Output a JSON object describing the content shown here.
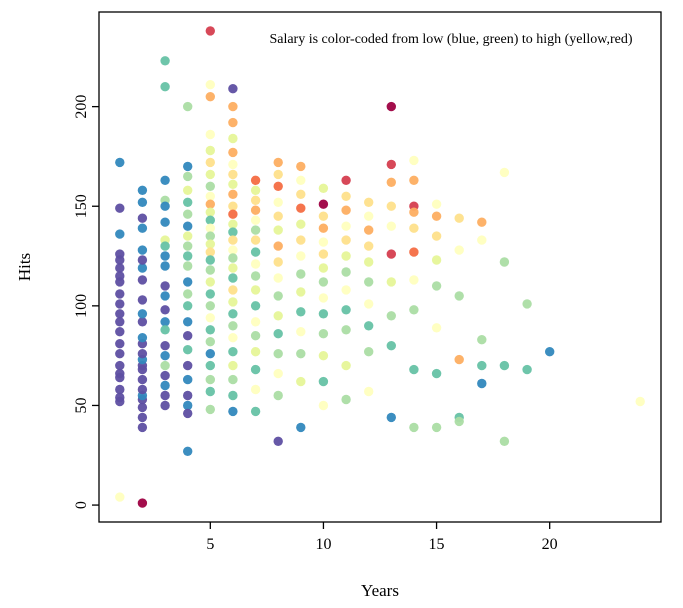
{
  "chart_data": {
    "type": "scatter",
    "title": "",
    "xlabel": "Years",
    "ylabel": "Hits",
    "annotation": "Salary is color-coded from low (blue, green) to high (yellow,red)",
    "xticks": [
      5,
      10,
      15,
      20
    ],
    "yticks": [
      0,
      50,
      100,
      150,
      200
    ],
    "xlim": [
      0.08,
      24.92
    ],
    "ylim": [
      -8.5,
      247.5
    ],
    "grid": false,
    "legend_position": "top-center-text",
    "palette_low_to_high": [
      "#5e4fa2",
      "#3288bd",
      "#66c2a5",
      "#abdda4",
      "#e6f598",
      "#ffffbf",
      "#fee08b",
      "#fdae61",
      "#f46d43",
      "#d53e4f",
      "#9e0142"
    ],
    "points": [
      [
        1,
        172,
        "#3288bd"
      ],
      [
        1,
        149,
        "#5e4fa2"
      ],
      [
        1,
        136,
        "#3288bd"
      ],
      [
        1,
        126,
        "#5e4fa2"
      ],
      [
        1,
        123,
        "#5e4fa2"
      ],
      [
        1,
        119,
        "#5e4fa2"
      ],
      [
        1,
        115,
        "#5e4fa2"
      ],
      [
        1,
        112,
        "#5e4fa2"
      ],
      [
        1,
        106,
        "#5e4fa2"
      ],
      [
        1,
        101,
        "#5e4fa2"
      ],
      [
        1,
        96,
        "#5e4fa2"
      ],
      [
        1,
        92,
        "#5e4fa2"
      ],
      [
        1,
        87,
        "#5e4fa2"
      ],
      [
        1,
        81,
        "#5e4fa2"
      ],
      [
        1,
        76,
        "#5e4fa2"
      ],
      [
        1,
        70,
        "#5e4fa2"
      ],
      [
        1,
        66,
        "#5e4fa2"
      ],
      [
        1,
        64,
        "#5e4fa2"
      ],
      [
        1,
        58,
        "#5e4fa2"
      ],
      [
        1,
        54,
        "#5e4fa2"
      ],
      [
        1,
        52,
        "#5e4fa2"
      ],
      [
        1,
        4,
        "#ffffbf"
      ],
      [
        2,
        1,
        "#9e0142"
      ],
      [
        2,
        39,
        "#5e4fa2"
      ],
      [
        2,
        44,
        "#5e4fa2"
      ],
      [
        2,
        49,
        "#5e4fa2"
      ],
      [
        2,
        53,
        "#5e4fa2"
      ],
      [
        2,
        55,
        "#3288bd"
      ],
      [
        2,
        58,
        "#5e4fa2"
      ],
      [
        2,
        63,
        "#5e4fa2"
      ],
      [
        2,
        68,
        "#5e4fa2"
      ],
      [
        2,
        70,
        "#5e4fa2"
      ],
      [
        2,
        73,
        "#3288bd"
      ],
      [
        2,
        76,
        "#5e4fa2"
      ],
      [
        2,
        81,
        "#5e4fa2"
      ],
      [
        2,
        84,
        "#3288bd"
      ],
      [
        2,
        92,
        "#5e4fa2"
      ],
      [
        2,
        96,
        "#3288bd"
      ],
      [
        2,
        103,
        "#5e4fa2"
      ],
      [
        2,
        113,
        "#5e4fa2"
      ],
      [
        2,
        119,
        "#3288bd"
      ],
      [
        2,
        123,
        "#5e4fa2"
      ],
      [
        2,
        128,
        "#3288bd"
      ],
      [
        2,
        139,
        "#3288bd"
      ],
      [
        2,
        144,
        "#5e4fa2"
      ],
      [
        2,
        152,
        "#3288bd"
      ],
      [
        2,
        158,
        "#3288bd"
      ],
      [
        3,
        223,
        "#66c2a5"
      ],
      [
        3,
        210,
        "#66c2a5"
      ],
      [
        3,
        163,
        "#3288bd"
      ],
      [
        3,
        153,
        "#abdda4"
      ],
      [
        3,
        150,
        "#3288bd"
      ],
      [
        3,
        142,
        "#3288bd"
      ],
      [
        3,
        133,
        "#e6f598"
      ],
      [
        3,
        130,
        "#66c2a5"
      ],
      [
        3,
        125,
        "#3288bd"
      ],
      [
        3,
        120,
        "#3288bd"
      ],
      [
        3,
        110,
        "#5e4fa2"
      ],
      [
        3,
        105,
        "#3288bd"
      ],
      [
        3,
        98,
        "#5e4fa2"
      ],
      [
        3,
        92,
        "#3288bd"
      ],
      [
        3,
        88,
        "#66c2a5"
      ],
      [
        3,
        80,
        "#5e4fa2"
      ],
      [
        3,
        75,
        "#3288bd"
      ],
      [
        3,
        70,
        "#abdda4"
      ],
      [
        3,
        65,
        "#5e4fa2"
      ],
      [
        3,
        60,
        "#3288bd"
      ],
      [
        3,
        55,
        "#5e4fa2"
      ],
      [
        3,
        50,
        "#5e4fa2"
      ],
      [
        4,
        200,
        "#abdda4"
      ],
      [
        4,
        170,
        "#3288bd"
      ],
      [
        4,
        165,
        "#abdda4"
      ],
      [
        4,
        158,
        "#e6f598"
      ],
      [
        4,
        152,
        "#66c2a5"
      ],
      [
        4,
        146,
        "#abdda4"
      ],
      [
        4,
        140,
        "#3288bd"
      ],
      [
        4,
        135,
        "#e6f598"
      ],
      [
        4,
        130,
        "#abdda4"
      ],
      [
        4,
        125,
        "#66c2a5"
      ],
      [
        4,
        120,
        "#abdda4"
      ],
      [
        4,
        112,
        "#3288bd"
      ],
      [
        4,
        106,
        "#abdda4"
      ],
      [
        4,
        100,
        "#66c2a5"
      ],
      [
        4,
        92,
        "#3288bd"
      ],
      [
        4,
        85,
        "#5e4fa2"
      ],
      [
        4,
        78,
        "#66c2a5"
      ],
      [
        4,
        70,
        "#5e4fa2"
      ],
      [
        4,
        63,
        "#3288bd"
      ],
      [
        4,
        55,
        "#5e4fa2"
      ],
      [
        4,
        50,
        "#3288bd"
      ],
      [
        4,
        46,
        "#5e4fa2"
      ],
      [
        4,
        27,
        "#3288bd"
      ],
      [
        5,
        238,
        "#d53e4f"
      ],
      [
        5,
        211,
        "#ffffbf"
      ],
      [
        5,
        205,
        "#fdae61"
      ],
      [
        5,
        186,
        "#ffffbf"
      ],
      [
        5,
        178,
        "#e6f598"
      ],
      [
        5,
        172,
        "#fee08b"
      ],
      [
        5,
        166,
        "#e6f598"
      ],
      [
        5,
        160,
        "#abdda4"
      ],
      [
        5,
        155,
        "#ffffbf"
      ],
      [
        5,
        151,
        "#fdae61"
      ],
      [
        5,
        147,
        "#e6f598"
      ],
      [
        5,
        143,
        "#66c2a5"
      ],
      [
        5,
        139,
        "#ffffbf"
      ],
      [
        5,
        135,
        "#abdda4"
      ],
      [
        5,
        131,
        "#e6f598"
      ],
      [
        5,
        127,
        "#fee08b"
      ],
      [
        5,
        123,
        "#66c2a5"
      ],
      [
        5,
        118,
        "#abdda4"
      ],
      [
        5,
        112,
        "#e6f598"
      ],
      [
        5,
        106,
        "#66c2a5"
      ],
      [
        5,
        100,
        "#abdda4"
      ],
      [
        5,
        94,
        "#ffffbf"
      ],
      [
        5,
        88,
        "#66c2a5"
      ],
      [
        5,
        82,
        "#abdda4"
      ],
      [
        5,
        76,
        "#3288bd"
      ],
      [
        5,
        70,
        "#66c2a5"
      ],
      [
        5,
        63,
        "#abdda4"
      ],
      [
        5,
        57,
        "#66c2a5"
      ],
      [
        5,
        48,
        "#abdda4"
      ],
      [
        6,
        209,
        "#5e4fa2"
      ],
      [
        6,
        200,
        "#fdae61"
      ],
      [
        6,
        192,
        "#fdae61"
      ],
      [
        6,
        184,
        "#e6f598"
      ],
      [
        6,
        177,
        "#fdae61"
      ],
      [
        6,
        171,
        "#ffffbf"
      ],
      [
        6,
        166,
        "#fee08b"
      ],
      [
        6,
        161,
        "#e6f598"
      ],
      [
        6,
        156,
        "#fdae61"
      ],
      [
        6,
        150,
        "#fee08b"
      ],
      [
        6,
        146,
        "#f46d43"
      ],
      [
        6,
        141,
        "#e6f598"
      ],
      [
        6,
        137,
        "#66c2a5"
      ],
      [
        6,
        133,
        "#fee08b"
      ],
      [
        6,
        128,
        "#ffffbf"
      ],
      [
        6,
        124,
        "#abdda4"
      ],
      [
        6,
        119,
        "#e6f598"
      ],
      [
        6,
        114,
        "#66c2a5"
      ],
      [
        6,
        108,
        "#fee08b"
      ],
      [
        6,
        102,
        "#e6f598"
      ],
      [
        6,
        96,
        "#66c2a5"
      ],
      [
        6,
        90,
        "#abdda4"
      ],
      [
        6,
        84,
        "#ffffbf"
      ],
      [
        6,
        77,
        "#66c2a5"
      ],
      [
        6,
        70,
        "#e6f598"
      ],
      [
        6,
        63,
        "#abdda4"
      ],
      [
        6,
        55,
        "#66c2a5"
      ],
      [
        6,
        47,
        "#3288bd"
      ],
      [
        7,
        163,
        "#f46d43"
      ],
      [
        7,
        158,
        "#e6f598"
      ],
      [
        7,
        153,
        "#fee08b"
      ],
      [
        7,
        148,
        "#fdae61"
      ],
      [
        7,
        143,
        "#ffffbf"
      ],
      [
        7,
        138,
        "#abdda4"
      ],
      [
        7,
        133,
        "#fee08b"
      ],
      [
        7,
        127,
        "#66c2a5"
      ],
      [
        7,
        121,
        "#ffffbf"
      ],
      [
        7,
        115,
        "#abdda4"
      ],
      [
        7,
        108,
        "#e6f598"
      ],
      [
        7,
        100,
        "#66c2a5"
      ],
      [
        7,
        92,
        "#ffffbf"
      ],
      [
        7,
        85,
        "#abdda4"
      ],
      [
        7,
        77,
        "#e6f598"
      ],
      [
        7,
        68,
        "#66c2a5"
      ],
      [
        7,
        58,
        "#ffffbf"
      ],
      [
        7,
        47,
        "#66c2a5"
      ],
      [
        8,
        172,
        "#fdae61"
      ],
      [
        8,
        166,
        "#fee08b"
      ],
      [
        8,
        160,
        "#f46d43"
      ],
      [
        8,
        152,
        "#ffffbf"
      ],
      [
        8,
        145,
        "#fee08b"
      ],
      [
        8,
        138,
        "#e6f598"
      ],
      [
        8,
        130,
        "#fdae61"
      ],
      [
        8,
        122,
        "#fee08b"
      ],
      [
        8,
        114,
        "#ffffbf"
      ],
      [
        8,
        105,
        "#abdda4"
      ],
      [
        8,
        95,
        "#e6f598"
      ],
      [
        8,
        86,
        "#66c2a5"
      ],
      [
        8,
        76,
        "#abdda4"
      ],
      [
        8,
        66,
        "#ffffbf"
      ],
      [
        8,
        55,
        "#abdda4"
      ],
      [
        8,
        32,
        "#5e4fa2"
      ],
      [
        9,
        170,
        "#fdae61"
      ],
      [
        9,
        163,
        "#ffffbf"
      ],
      [
        9,
        156,
        "#fee08b"
      ],
      [
        9,
        149,
        "#f46d43"
      ],
      [
        9,
        141,
        "#e6f598"
      ],
      [
        9,
        133,
        "#fee08b"
      ],
      [
        9,
        125,
        "#ffffbf"
      ],
      [
        9,
        116,
        "#abdda4"
      ],
      [
        9,
        107,
        "#e6f598"
      ],
      [
        9,
        97,
        "#66c2a5"
      ],
      [
        9,
        87,
        "#ffffbf"
      ],
      [
        9,
        76,
        "#abdda4"
      ],
      [
        9,
        62,
        "#e6f598"
      ],
      [
        9,
        39,
        "#3288bd"
      ],
      [
        10,
        159,
        "#e6f598"
      ],
      [
        10,
        151,
        "#9e0142"
      ],
      [
        10,
        145,
        "#fee08b"
      ],
      [
        10,
        139,
        "#fdae61"
      ],
      [
        10,
        132,
        "#ffffbf"
      ],
      [
        10,
        126,
        "#fee08b"
      ],
      [
        10,
        119,
        "#e6f598"
      ],
      [
        10,
        112,
        "#abdda4"
      ],
      [
        10,
        104,
        "#ffffbf"
      ],
      [
        10,
        96,
        "#66c2a5"
      ],
      [
        10,
        86,
        "#abdda4"
      ],
      [
        10,
        75,
        "#e6f598"
      ],
      [
        10,
        62,
        "#66c2a5"
      ],
      [
        10,
        50,
        "#ffffbf"
      ],
      [
        11,
        163,
        "#d53e4f"
      ],
      [
        11,
        155,
        "#fee08b"
      ],
      [
        11,
        148,
        "#fdae61"
      ],
      [
        11,
        140,
        "#ffffbf"
      ],
      [
        11,
        133,
        "#fee08b"
      ],
      [
        11,
        125,
        "#e6f598"
      ],
      [
        11,
        117,
        "#abdda4"
      ],
      [
        11,
        108,
        "#ffffbf"
      ],
      [
        11,
        98,
        "#66c2a5"
      ],
      [
        11,
        88,
        "#abdda4"
      ],
      [
        11,
        70,
        "#e6f598"
      ],
      [
        11,
        53,
        "#abdda4"
      ],
      [
        12,
        152,
        "#fee08b"
      ],
      [
        12,
        145,
        "#ffffbf"
      ],
      [
        12,
        138,
        "#fdae61"
      ],
      [
        12,
        130,
        "#fee08b"
      ],
      [
        12,
        122,
        "#e6f598"
      ],
      [
        12,
        112,
        "#abdda4"
      ],
      [
        12,
        101,
        "#ffffbf"
      ],
      [
        12,
        90,
        "#66c2a5"
      ],
      [
        12,
        77,
        "#abdda4"
      ],
      [
        12,
        57,
        "#ffffbf"
      ],
      [
        13,
        200,
        "#9e0142"
      ],
      [
        13,
        171,
        "#d53e4f"
      ],
      [
        13,
        162,
        "#fdae61"
      ],
      [
        13,
        150,
        "#fee08b"
      ],
      [
        13,
        140,
        "#ffffbf"
      ],
      [
        13,
        126,
        "#d53e4f"
      ],
      [
        13,
        112,
        "#e6f598"
      ],
      [
        13,
        95,
        "#abdda4"
      ],
      [
        13,
        80,
        "#66c2a5"
      ],
      [
        13,
        44,
        "#3288bd"
      ],
      [
        14,
        173,
        "#ffffbf"
      ],
      [
        14,
        163,
        "#fdae61"
      ],
      [
        14,
        150,
        "#d53e4f"
      ],
      [
        14,
        147,
        "#fdae61"
      ],
      [
        14,
        139,
        "#fee08b"
      ],
      [
        14,
        127,
        "#f46d43"
      ],
      [
        14,
        113,
        "#ffffbf"
      ],
      [
        14,
        98,
        "#abdda4"
      ],
      [
        14,
        68,
        "#66c2a5"
      ],
      [
        14,
        39,
        "#abdda4"
      ],
      [
        15,
        151,
        "#ffffbf"
      ],
      [
        15,
        145,
        "#fdae61"
      ],
      [
        15,
        135,
        "#fee08b"
      ],
      [
        15,
        123,
        "#e6f598"
      ],
      [
        15,
        110,
        "#abdda4"
      ],
      [
        15,
        89,
        "#ffffbf"
      ],
      [
        15,
        66,
        "#66c2a5"
      ],
      [
        15,
        39,
        "#abdda4"
      ],
      [
        16,
        144,
        "#fee08b"
      ],
      [
        16,
        128,
        "#ffffbf"
      ],
      [
        16,
        105,
        "#abdda4"
      ],
      [
        16,
        73,
        "#fdae61"
      ],
      [
        16,
        44,
        "#66c2a5"
      ],
      [
        16,
        42,
        "#abdda4"
      ],
      [
        17,
        142,
        "#fdae61"
      ],
      [
        17,
        133,
        "#ffffbf"
      ],
      [
        17,
        83,
        "#abdda4"
      ],
      [
        17,
        70,
        "#66c2a5"
      ],
      [
        17,
        61,
        "#3288bd"
      ],
      [
        18,
        167,
        "#ffffbf"
      ],
      [
        18,
        122,
        "#abdda4"
      ],
      [
        18,
        70,
        "#66c2a5"
      ],
      [
        18,
        32,
        "#abdda4"
      ],
      [
        19,
        101,
        "#abdda4"
      ],
      [
        19,
        68,
        "#66c2a5"
      ],
      [
        20,
        77,
        "#3288bd"
      ],
      [
        24,
        52,
        "#ffffbf"
      ]
    ]
  }
}
